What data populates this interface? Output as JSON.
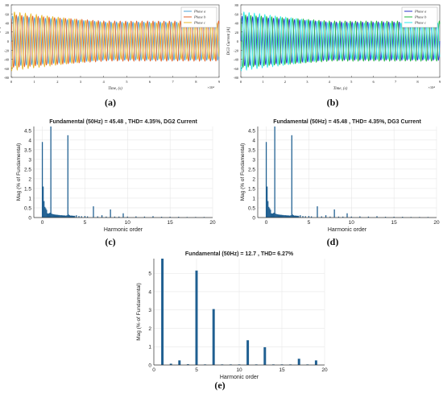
{
  "chart_data": [
    {
      "id": "a",
      "type": "line",
      "caption": "(a)",
      "xlabel": "Time, (s)",
      "ylabel": "DG2 Current [A]",
      "x_exponent": "×10⁴",
      "xlim": [
        0,
        9
      ],
      "ylim": [
        -80,
        80
      ],
      "xticks": [
        "0",
        "1",
        "2",
        "3",
        "4",
        "5",
        "6",
        "7",
        "8",
        "9"
      ],
      "yticks": [
        "80",
        "60",
        "40",
        "20",
        "0",
        "-20",
        "-40",
        "-60",
        "-80"
      ],
      "legend": "top-right",
      "series": [
        {
          "name": "Phase a",
          "color": "#4fa3d6",
          "amp_start": 55,
          "amp_end": 42,
          "cycles": 38,
          "phase_deg": 0
        },
        {
          "name": "Phase b",
          "color": "#e0622a",
          "amp_start": 58,
          "amp_end": 44,
          "cycles": 38,
          "phase_deg": 120
        },
        {
          "name": "Phase c",
          "color": "#e8b82a",
          "amp_start": 65,
          "amp_end": 40,
          "cycles": 38,
          "phase_deg": 240
        }
      ]
    },
    {
      "id": "b",
      "type": "line",
      "caption": "(b)",
      "xlabel": "Time, (s)",
      "ylabel": "DG3 Current [A]",
      "x_exponent": "×10⁴",
      "xlim": [
        0,
        9
      ],
      "ylim": [
        -80,
        80
      ],
      "xticks": [
        "0",
        "1",
        "2",
        "3",
        "4",
        "5",
        "6",
        "7",
        "8",
        "9"
      ],
      "yticks": [
        "80",
        "60",
        "40",
        "20",
        "0",
        "-20",
        "-40",
        "-60",
        "-80"
      ],
      "legend": "top-right",
      "series": [
        {
          "name": "Phase a",
          "color": "#2b35c9",
          "amp_start": 55,
          "amp_end": 42,
          "cycles": 38,
          "phase_deg": 0
        },
        {
          "name": "Phase b",
          "color": "#1fb53d",
          "amp_start": 58,
          "amp_end": 44,
          "cycles": 38,
          "phase_deg": 120
        },
        {
          "name": "Phase c",
          "color": "#2ee8e8",
          "amp_start": 65,
          "amp_end": 40,
          "cycles": 38,
          "phase_deg": 240
        }
      ]
    },
    {
      "id": "c",
      "type": "bar",
      "caption": "(c)",
      "title": "Fundamental (50Hz) = 45.48 , THD= 4.35%, DG2 Current",
      "xlabel": "Harmonic order",
      "ylabel": "Mag (% of Fundamental)",
      "xlim": [
        -1,
        20
      ],
      "ylim": [
        0,
        4.7
      ],
      "xticks": [
        0,
        5,
        10,
        15,
        20
      ],
      "yticks": [
        0,
        0.5,
        1,
        1.5,
        2,
        2.5,
        3,
        3.5,
        4,
        4.5
      ],
      "bar_width": 0.12,
      "points": [
        [
          0,
          3.9
        ],
        [
          0.1,
          1.6
        ],
        [
          0.2,
          0.85
        ],
        [
          0.3,
          0.55
        ],
        [
          0.4,
          0.48
        ],
        [
          0.5,
          0.4
        ],
        [
          0.6,
          0.22
        ],
        [
          0.7,
          0.2
        ],
        [
          0.8,
          0.22
        ],
        [
          0.9,
          0.25
        ],
        [
          1,
          4.7
        ],
        [
          1.1,
          0.2
        ],
        [
          1.2,
          0.18
        ],
        [
          1.3,
          0.17
        ],
        [
          1.4,
          0.16
        ],
        [
          1.5,
          0.15
        ],
        [
          1.6,
          0.15
        ],
        [
          1.7,
          0.14
        ],
        [
          1.8,
          0.14
        ],
        [
          1.9,
          0.13
        ],
        [
          2,
          0.13
        ],
        [
          2.1,
          0.12
        ],
        [
          2.2,
          0.12
        ],
        [
          2.3,
          0.12
        ],
        [
          2.4,
          0.11
        ],
        [
          2.5,
          0.11
        ],
        [
          2.6,
          0.11
        ],
        [
          2.7,
          0.1
        ],
        [
          2.8,
          0.1
        ],
        [
          2.9,
          0.12
        ],
        [
          3,
          4.25
        ],
        [
          3.1,
          0.15
        ],
        [
          3.2,
          0.12
        ],
        [
          3.3,
          0.1
        ],
        [
          3.4,
          0.1
        ],
        [
          3.5,
          0.1
        ],
        [
          3.6,
          0.09
        ],
        [
          3.7,
          0.09
        ],
        [
          3.8,
          0.09
        ],
        [
          4,
          0.12
        ],
        [
          4.3,
          0.08
        ],
        [
          4.6,
          0.07
        ],
        [
          5,
          0.08
        ],
        [
          5.3,
          0.06
        ],
        [
          6,
          0.58
        ],
        [
          6.5,
          0.06
        ],
        [
          7,
          0.12
        ],
        [
          7.5,
          0.05
        ],
        [
          8,
          0.42
        ],
        [
          8.5,
          0.05
        ],
        [
          9,
          0.05
        ],
        [
          9.5,
          0.22
        ],
        [
          10,
          0.05
        ],
        [
          11,
          0.06
        ],
        [
          12,
          0.05
        ],
        [
          13,
          0.07
        ],
        [
          14,
          0.04
        ],
        [
          15,
          0.04
        ],
        [
          16,
          0.04
        ],
        [
          17,
          0.03
        ],
        [
          18,
          0.03
        ],
        [
          19,
          0.03
        ]
      ]
    },
    {
      "id": "d",
      "type": "bar",
      "caption": "(d)",
      "title": "Fundamental (50Hz) = 45.48 , THD= 4.35%, DG3 Current",
      "xlabel": "Harmonic order",
      "ylabel": "Mag (% of Fundamental)",
      "xlim": [
        -1,
        20
      ],
      "ylim": [
        0,
        4.7
      ],
      "xticks": [
        0,
        5,
        10,
        15,
        20
      ],
      "yticks": [
        0,
        0.5,
        1,
        1.5,
        2,
        2.5,
        3,
        3.5,
        4,
        4.5
      ],
      "bar_width": 0.12,
      "points": [
        [
          0,
          3.9
        ],
        [
          0.1,
          1.6
        ],
        [
          0.2,
          0.85
        ],
        [
          0.3,
          0.55
        ],
        [
          0.4,
          0.48
        ],
        [
          0.5,
          0.4
        ],
        [
          0.6,
          0.22
        ],
        [
          0.7,
          0.2
        ],
        [
          0.8,
          0.22
        ],
        [
          0.9,
          0.25
        ],
        [
          1,
          4.7
        ],
        [
          1.1,
          0.2
        ],
        [
          1.2,
          0.18
        ],
        [
          1.3,
          0.17
        ],
        [
          1.4,
          0.16
        ],
        [
          1.5,
          0.15
        ],
        [
          1.6,
          0.15
        ],
        [
          1.7,
          0.14
        ],
        [
          1.8,
          0.14
        ],
        [
          1.9,
          0.13
        ],
        [
          2,
          0.13
        ],
        [
          2.1,
          0.12
        ],
        [
          2.2,
          0.12
        ],
        [
          2.3,
          0.12
        ],
        [
          2.4,
          0.11
        ],
        [
          2.5,
          0.11
        ],
        [
          2.6,
          0.11
        ],
        [
          2.7,
          0.1
        ],
        [
          2.8,
          0.1
        ],
        [
          2.9,
          0.12
        ],
        [
          3,
          4.25
        ],
        [
          3.1,
          0.15
        ],
        [
          3.2,
          0.12
        ],
        [
          3.3,
          0.1
        ],
        [
          3.4,
          0.1
        ],
        [
          3.5,
          0.1
        ],
        [
          3.6,
          0.09
        ],
        [
          3.7,
          0.09
        ],
        [
          3.8,
          0.09
        ],
        [
          4,
          0.12
        ],
        [
          4.3,
          0.08
        ],
        [
          4.6,
          0.07
        ],
        [
          5,
          0.08
        ],
        [
          5.3,
          0.06
        ],
        [
          6,
          0.58
        ],
        [
          6.5,
          0.06
        ],
        [
          7,
          0.12
        ],
        [
          7.5,
          0.05
        ],
        [
          8,
          0.42
        ],
        [
          8.5,
          0.05
        ],
        [
          9,
          0.05
        ],
        [
          9.5,
          0.22
        ],
        [
          10,
          0.05
        ],
        [
          11,
          0.06
        ],
        [
          12,
          0.05
        ],
        [
          13,
          0.07
        ],
        [
          14,
          0.04
        ],
        [
          15,
          0.04
        ],
        [
          16,
          0.04
        ],
        [
          17,
          0.03
        ],
        [
          18,
          0.03
        ],
        [
          19,
          0.03
        ]
      ]
    },
    {
      "id": "e",
      "type": "bar",
      "caption": "(e)",
      "title": "Fundamental (50Hz) = 12.7 , THD= 6.27%",
      "xlabel": "Harmonic order",
      "ylabel": "Mag (% of Fundamental)",
      "xlim": [
        0,
        20
      ],
      "ylim": [
        0,
        5.8
      ],
      "xticks": [
        0,
        5,
        10,
        15,
        20
      ],
      "yticks": [
        0,
        1,
        2,
        3,
        4,
        5
      ],
      "bar_width": 0.28,
      "points": [
        [
          1,
          5.8
        ],
        [
          2,
          0.07
        ],
        [
          3,
          0.25
        ],
        [
          4,
          0.04
        ],
        [
          5,
          5.15
        ],
        [
          6,
          0.03
        ],
        [
          7,
          3.05
        ],
        [
          8,
          0.03
        ],
        [
          9,
          0.03
        ],
        [
          10,
          0.03
        ],
        [
          11,
          1.35
        ],
        [
          12,
          0.03
        ],
        [
          13,
          0.97
        ],
        [
          14,
          0.03
        ],
        [
          15,
          0.03
        ],
        [
          16,
          0.03
        ],
        [
          17,
          0.34
        ],
        [
          18,
          0.03
        ],
        [
          19,
          0.25
        ]
      ]
    }
  ],
  "colors": {
    "bar": "#1f5f91",
    "axis": "#333333",
    "grid": "#dddddd"
  }
}
